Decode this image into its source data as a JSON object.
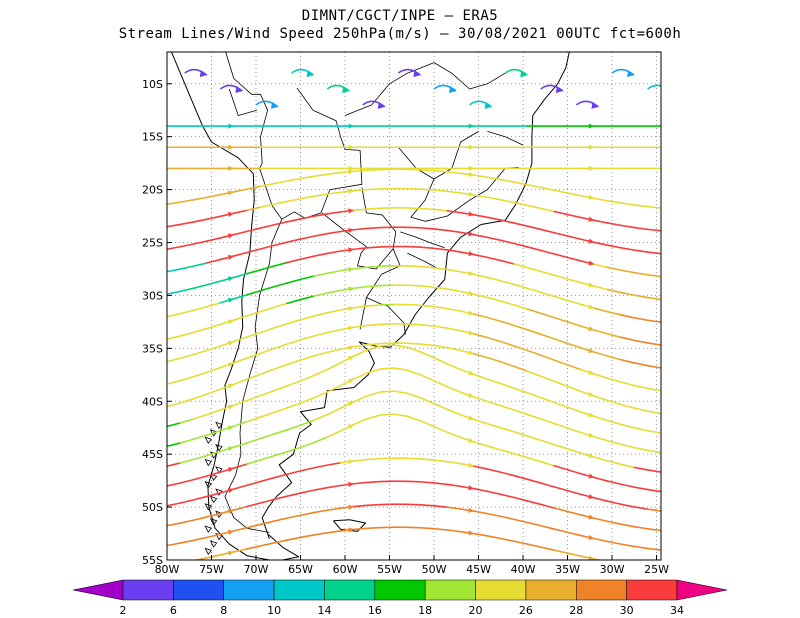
{
  "header": {
    "line1": "DIMNT/CGCT/INPE –  ERA5",
    "line2": "Stream Lines/Wind Speed 250hPa(m/s) –  30/08/2021 00UTC fct=600h"
  },
  "map": {
    "lon_range": [
      -80,
      -24.5
    ],
    "lat_range": [
      -55,
      -7
    ],
    "lon_ticks": [
      "80W",
      "75W",
      "70W",
      "65W",
      "60W",
      "55W",
      "50W",
      "45W",
      "40W",
      "35W",
      "30W",
      "25W"
    ],
    "lon_tick_values": [
      -80,
      -75,
      -70,
      -65,
      -60,
      -55,
      -50,
      -45,
      -40,
      -35,
      -30,
      -25
    ],
    "lat_ticks": [
      "10S",
      "15S",
      "20S",
      "25S",
      "30S",
      "35S",
      "40S",
      "45S",
      "50S",
      "55S"
    ],
    "lat_tick_values": [
      -10,
      -15,
      -20,
      -25,
      -30,
      -35,
      -40,
      -45,
      -50,
      -55
    ],
    "grid": true
  },
  "colorbar": {
    "labels": [
      "2",
      "6",
      "8",
      "10",
      "14",
      "16",
      "18",
      "20",
      "26",
      "28",
      "30",
      "34"
    ],
    "colors": [
      "#a000c8",
      "#6a3df0",
      "#2050f0",
      "#14a0f0",
      "#00c8c8",
      "#00d28c",
      "#00c800",
      "#a0e632",
      "#e6dc32",
      "#e6af2d",
      "#f08228",
      "#fa3c3c",
      "#f00082"
    ]
  }
}
